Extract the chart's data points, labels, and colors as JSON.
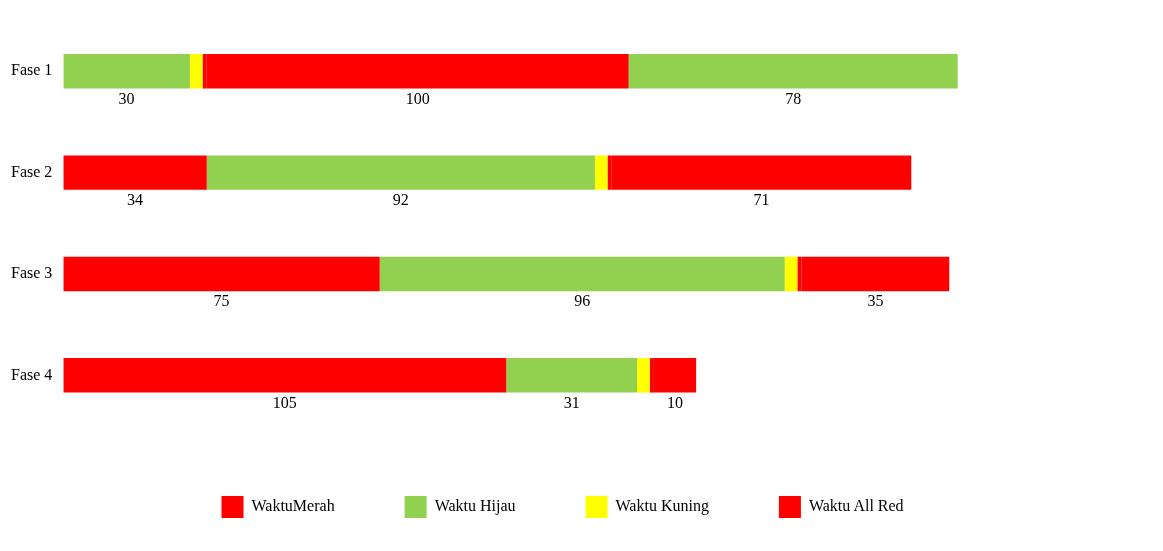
{
  "chart_data": {
    "type": "bar",
    "orientation": "horizontal",
    "stacked": true,
    "categories": [
      "Fase 1",
      "Fase 2",
      "Fase 3",
      "Fase 4"
    ],
    "legend": "bottom",
    "grid": false,
    "series": [
      {
        "name": "WaktuMerah",
        "color": "#ff0000",
        "values": [
          null,
          34,
          75,
          105
        ],
        "value_labels": [
          null,
          "34",
          "75",
          "105"
        ]
      },
      {
        "name": "Waktu Hijau",
        "color": "#92d050",
        "values": [
          30,
          92,
          96,
          31
        ],
        "value_labels": [
          "30",
          "92",
          "96",
          "31"
        ]
      },
      {
        "name": "Waktu Kuning",
        "color": "#ffff00",
        "values": [
          3,
          3,
          3,
          3
        ],
        "value_labels": [
          null,
          null,
          null,
          null
        ]
      },
      {
        "name": "Waktu All Red",
        "color": "#ff0000",
        "values": [
          1,
          1,
          1,
          1
        ],
        "value_labels": [
          null,
          null,
          null,
          null
        ]
      },
      {
        "color": "#ff0000",
        "values": [
          100,
          71,
          35,
          10
        ],
        "value_labels": [
          "100",
          "71",
          "35",
          "10"
        ]
      },
      {
        "color": "#92d050",
        "values": [
          78,
          null,
          null,
          null
        ],
        "value_labels": [
          "78",
          null,
          null,
          null
        ]
      }
    ]
  }
}
